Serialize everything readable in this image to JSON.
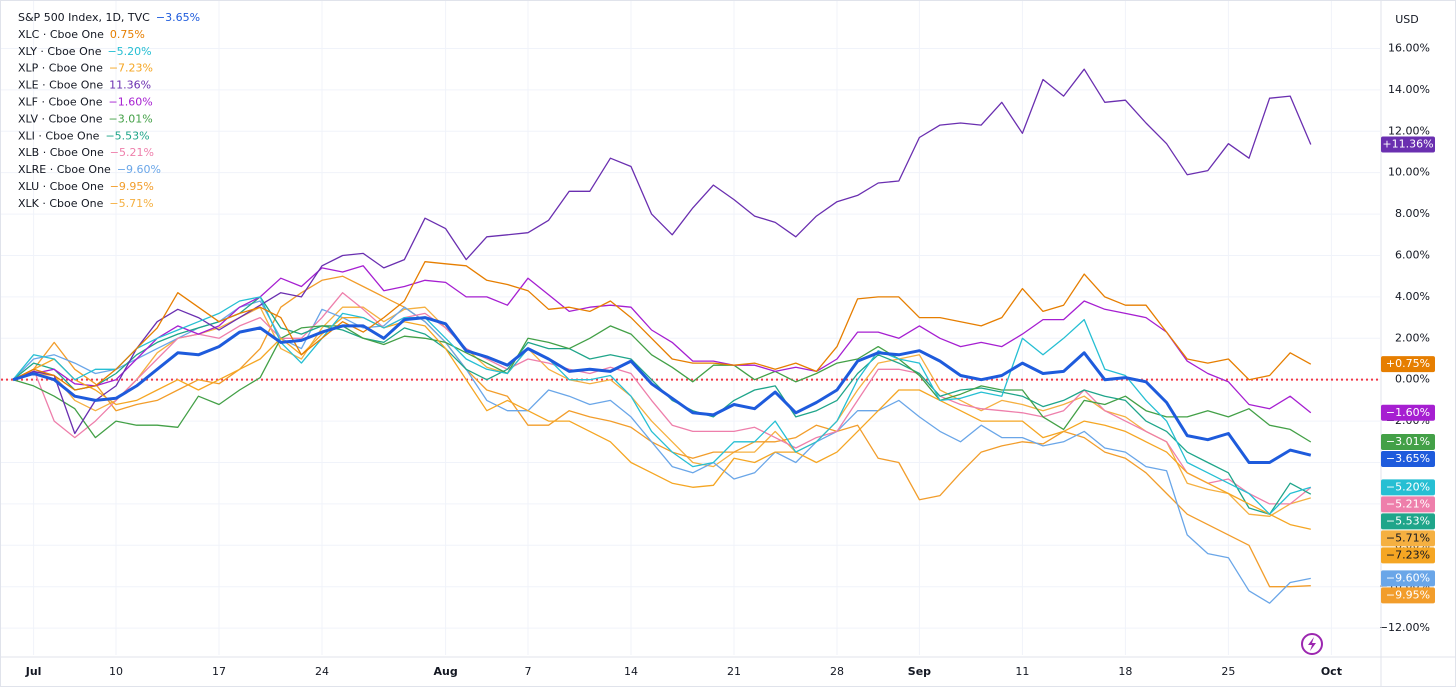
{
  "chart_data": {
    "type": "line",
    "currency": "USD",
    "categories": [
      null,
      "Jul",
      null,
      null,
      null,
      "10",
      null,
      null,
      null,
      null,
      "17",
      null,
      null,
      null,
      null,
      "24",
      null,
      null,
      null,
      null,
      null,
      "Aug",
      null,
      null,
      null,
      "7",
      null,
      null,
      null,
      null,
      "14",
      null,
      null,
      null,
      null,
      "21",
      null,
      null,
      null,
      null,
      "28",
      null,
      null,
      null,
      "Sep",
      null,
      null,
      null,
      null,
      "11",
      null,
      null,
      null,
      null,
      "18",
      null,
      null,
      null,
      null,
      "25",
      null,
      null,
      null,
      null,
      "Oct"
    ],
    "ylim": [
      -13.3,
      18.1
    ],
    "yticks": [
      {
        "value": -12,
        "label": "−12.00%"
      },
      {
        "value": -10,
        "label": "−10.00%"
      },
      {
        "value": -8,
        "label": "−8.00%"
      },
      {
        "value": -6,
        "label": "−6.00%"
      },
      {
        "value": -4,
        "label": "−4.00%"
      },
      {
        "value": -2,
        "label": "−2.00%"
      },
      {
        "value": 0,
        "label": "0.00%"
      },
      {
        "value": 2,
        "label": "2.00%"
      },
      {
        "value": 4,
        "label": "4.00%"
      },
      {
        "value": 6,
        "label": "6.00%"
      },
      {
        "value": 8,
        "label": "8.00%"
      },
      {
        "value": 10,
        "label": "10.00%"
      },
      {
        "value": 12,
        "label": "12.00%"
      },
      {
        "value": 14,
        "label": "14.00%"
      },
      {
        "value": 16,
        "label": "16.00%"
      }
    ],
    "grid": true,
    "series": [
      {
        "name": "S&P 500 Index, 1D, TVC",
        "legend_value": "−3.65%",
        "badge": "−3.65%",
        "color": "#1e5bdc",
        "width": 3,
        "values": [
          0,
          0.3,
          0,
          -0.8,
          -1.0,
          -0.9,
          -0.3,
          0.5,
          1.3,
          1.2,
          1.6,
          2.3,
          2.5,
          1.8,
          1.9,
          2.3,
          2.6,
          2.6,
          2.0,
          2.9,
          3.0,
          2.7,
          1.4,
          1.1,
          0.7,
          1.5,
          1.0,
          0.4,
          0.5,
          0.4,
          0.9,
          -0.2,
          -0.9,
          -1.6,
          -1.7,
          -1.2,
          -1.4,
          -0.6,
          -1.6,
          -1.1,
          -0.5,
          0.9,
          1.3,
          1.2,
          1.4,
          0.9,
          0.2,
          0.0,
          0.2,
          0.8,
          0.3,
          0.4,
          1.3,
          0.0,
          0.1,
          -0.1,
          -1.1,
          -2.7,
          -2.9,
          -2.6,
          -4.0,
          -4.0,
          -3.4,
          -3.65,
          null
        ]
      },
      {
        "name": "XLC · Cboe One",
        "legend_value": "0.75%",
        "badge": "+0.75%",
        "color": "#e67e00",
        "width": 1.3,
        "values": [
          0,
          0.5,
          0.2,
          -0.5,
          -0.3,
          0.5,
          1.5,
          2.5,
          4.2,
          3.5,
          2.8,
          3.2,
          3.5,
          3.0,
          1.2,
          2.0,
          2.8,
          2.3,
          3.0,
          3.8,
          5.7,
          5.6,
          5.5,
          4.8,
          4.6,
          4.3,
          3.4,
          3.5,
          3.3,
          3.8,
          3.0,
          2.0,
          1.0,
          0.8,
          0.8,
          0.7,
          0.8,
          0.5,
          0.8,
          0.4,
          1.6,
          3.9,
          4.0,
          4.0,
          3.0,
          3.0,
          2.8,
          2.6,
          3.0,
          4.4,
          3.3,
          3.6,
          5.1,
          4.0,
          3.6,
          3.6,
          2.3,
          1.0,
          0.8,
          1.0,
          0.0,
          0.2,
          1.3,
          0.75,
          null
        ]
      },
      {
        "name": "XLY · Cboe One",
        "legend_value": "−5.20%",
        "badge": "−5.20%",
        "color": "#26bfd3",
        "width": 1.3,
        "values": [
          0,
          1.2,
          1.0,
          0.0,
          0.5,
          0.5,
          1.5,
          2.0,
          2.4,
          2.8,
          3.2,
          3.8,
          4.0,
          1.8,
          0.8,
          2.0,
          3.2,
          3.0,
          2.5,
          3.0,
          3.0,
          2.0,
          1.0,
          0.5,
          0.3,
          1.5,
          1.0,
          0.0,
          0.0,
          0.2,
          -0.8,
          -2.5,
          -3.5,
          -4.2,
          -4.0,
          -3.0,
          -3.0,
          -2.0,
          -3.5,
          -3.0,
          -2.0,
          0.0,
          1.4,
          1.0,
          0.8,
          -1.0,
          -0.9,
          -0.6,
          -0.8,
          2.0,
          1.2,
          2.0,
          2.9,
          0.5,
          0.2,
          -1.0,
          -2.0,
          -4.0,
          -4.5,
          -5.0,
          -5.5,
          -6.5,
          -5.5,
          -5.2,
          null
        ]
      },
      {
        "name": "XLP · Cboe One",
        "legend_value": "−7.23%",
        "badge": "−7.23%",
        "color": "#f5a623",
        "width": 1.3,
        "values": [
          0,
          0.5,
          1.0,
          0.0,
          -0.5,
          -1.2,
          -1.0,
          -0.5,
          0.0,
          -0.5,
          0.0,
          0.5,
          1.0,
          2.0,
          1.2,
          2.2,
          3.0,
          3.0,
          2.5,
          2.8,
          2.6,
          1.5,
          0.0,
          -1.5,
          -1.0,
          -1.5,
          -2.0,
          -2.0,
          -2.5,
          -3.0,
          -4.0,
          -4.5,
          -5.0,
          -5.2,
          -5.1,
          -3.8,
          -4.0,
          -3.5,
          -3.5,
          -4.0,
          -3.5,
          -2.5,
          -1.5,
          -0.5,
          -0.5,
          -1.0,
          -1.5,
          -2.0,
          -2.0,
          -2.0,
          -2.8,
          -2.5,
          -2.0,
          -2.2,
          -2.5,
          -3.0,
          -3.5,
          -4.5,
          -5.0,
          -5.5,
          -6.0,
          -6.5,
          -7.0,
          -7.23,
          null
        ]
      },
      {
        "name": "XLE · Cboe One",
        "legend_value": "11.36%",
        "badge": "+11.36%",
        "color": "#6a2fb0",
        "width": 1.3,
        "values": [
          0,
          0.4,
          0.2,
          -2.6,
          -1.0,
          -0.3,
          1.5,
          2.8,
          3.4,
          3.0,
          2.4,
          3.0,
          3.6,
          4.2,
          4.0,
          5.5,
          6.0,
          6.1,
          5.4,
          5.8,
          7.8,
          7.3,
          5.8,
          6.9,
          7.0,
          7.1,
          7.7,
          9.1,
          9.1,
          10.7,
          10.3,
          8.0,
          7.0,
          8.3,
          9.4,
          8.7,
          7.9,
          7.6,
          6.9,
          7.9,
          8.6,
          8.9,
          9.5,
          9.6,
          11.7,
          12.3,
          12.4,
          12.3,
          13.4,
          11.9,
          14.5,
          13.7,
          15.0,
          13.4,
          13.5,
          12.4,
          11.4,
          9.9,
          10.1,
          11.4,
          10.7,
          13.6,
          13.7,
          11.36,
          null
        ]
      },
      {
        "name": "XLF · Cboe One",
        "legend_value": "−1.60%",
        "badge": "−1.60%",
        "color": "#a61fd1",
        "width": 1.3,
        "values": [
          0,
          0.3,
          0.5,
          -0.2,
          -0.3,
          0.0,
          1.0,
          2.0,
          2.6,
          2.2,
          2.6,
          3.5,
          4.0,
          4.9,
          4.5,
          5.4,
          5.2,
          5.5,
          4.3,
          4.5,
          4.8,
          4.7,
          4.0,
          4.0,
          3.6,
          4.9,
          4.1,
          3.3,
          3.5,
          3.6,
          3.5,
          2.4,
          1.8,
          0.9,
          0.9,
          0.7,
          0.7,
          0.4,
          0.6,
          0.4,
          1.0,
          2.3,
          2.3,
          2.0,
          2.6,
          2.0,
          1.6,
          1.8,
          1.6,
          2.2,
          2.9,
          2.9,
          3.8,
          3.4,
          3.2,
          3.0,
          2.3,
          0.9,
          0.3,
          -0.1,
          -1.2,
          -1.4,
          -0.8,
          -1.6,
          null
        ]
      },
      {
        "name": "XLV · Cboe One",
        "legend_value": "−3.01%",
        "badge": "−3.01%",
        "color": "#43a047",
        "width": 1.3,
        "values": [
          0,
          -0.3,
          -0.8,
          -1.4,
          -2.8,
          -2.0,
          -2.2,
          -2.2,
          -2.3,
          -0.8,
          -1.2,
          -0.5,
          0.1,
          2.0,
          2.5,
          2.6,
          2.6,
          2.0,
          1.7,
          2.1,
          2.0,
          1.8,
          1.3,
          0.8,
          0.3,
          2.0,
          1.8,
          1.5,
          2.0,
          2.6,
          2.2,
          1.2,
          0.6,
          -0.1,
          0.7,
          0.7,
          0.0,
          0.4,
          -0.1,
          0.3,
          0.8,
          1.0,
          1.6,
          1.0,
          0.2,
          -1.0,
          -0.7,
          -0.3,
          -0.5,
          -0.5,
          -1.8,
          -2.4,
          -1.0,
          -1.2,
          -0.8,
          -1.5,
          -1.8,
          -1.8,
          -1.5,
          -1.8,
          -1.4,
          -2.2,
          -2.4,
          -3.01,
          null
        ]
      },
      {
        "name": "XLI · Cboe One",
        "legend_value": "−5.53%",
        "badge": "−5.53%",
        "color": "#1fa58a",
        "width": 1.3,
        "values": [
          0,
          0.8,
          0.5,
          -0.5,
          -0.3,
          0.3,
          1.2,
          1.8,
          2.2,
          2.5,
          2.8,
          3.2,
          4.0,
          2.5,
          2.2,
          2.6,
          2.4,
          2.0,
          1.8,
          2.5,
          2.2,
          1.5,
          0.5,
          0.0,
          0.5,
          1.8,
          1.5,
          1.5,
          1.0,
          1.2,
          1.0,
          0.0,
          -1.0,
          -1.5,
          -1.8,
          -1.0,
          -0.5,
          -0.3,
          -1.8,
          -1.5,
          -1.0,
          0.3,
          1.2,
          0.8,
          0.3,
          -0.8,
          -0.5,
          -0.4,
          -0.6,
          -0.8,
          -1.3,
          -1.0,
          -0.5,
          -0.8,
          -1.0,
          -2.0,
          -2.5,
          -3.5,
          -4.0,
          -4.5,
          -6.2,
          -6.5,
          -5.0,
          -5.53,
          null
        ]
      },
      {
        "name": "XLB · Cboe One",
        "legend_value": "−5.21%",
        "badge": "−5.21%",
        "color": "#ee7fab",
        "width": 1.3,
        "values": [
          0,
          0.5,
          -2.0,
          -2.8,
          -2.0,
          -1.0,
          0.0,
          1.0,
          2.0,
          2.2,
          2.0,
          2.6,
          3.0,
          2.0,
          2.0,
          3.0,
          4.2,
          3.4,
          2.5,
          3.0,
          3.2,
          2.5,
          1.5,
          1.0,
          0.5,
          1.0,
          0.8,
          0.5,
          0.3,
          0.6,
          0.3,
          -1.0,
          -2.2,
          -2.5,
          -2.5,
          -2.5,
          -2.3,
          -2.8,
          -3.3,
          -2.8,
          -2.5,
          -1.0,
          0.5,
          0.5,
          0.3,
          -0.8,
          -1.2,
          -1.4,
          -1.5,
          -1.6,
          -1.8,
          -1.5,
          -0.5,
          -1.5,
          -2.0,
          -2.5,
          -3.0,
          -4.5,
          -5.0,
          -4.8,
          -5.5,
          -6.0,
          -6.0,
          -5.21,
          null
        ]
      },
      {
        "name": "XLRE · Cboe One",
        "legend_value": "−9.60%",
        "badge": "−9.60%",
        "color": "#6aa6e8",
        "width": 1.3,
        "values": [
          0,
          1.0,
          1.2,
          0.8,
          0.3,
          0.5,
          1.0,
          1.5,
          2.0,
          2.5,
          2.8,
          3.5,
          3.8,
          2.0,
          1.5,
          3.4,
          3.0,
          2.5,
          2.6,
          3.5,
          2.8,
          1.8,
          0.5,
          -1.0,
          -1.5,
          -1.5,
          -0.5,
          -0.8,
          -1.2,
          -1.0,
          -1.8,
          -3.0,
          -4.2,
          -4.5,
          -4.0,
          -4.8,
          -4.5,
          -3.5,
          -4.0,
          -3.0,
          -2.5,
          -1.5,
          -1.5,
          -1.0,
          -1.8,
          -2.5,
          -3.0,
          -2.2,
          -2.8,
          -2.8,
          -3.2,
          -3.0,
          -2.5,
          -3.3,
          -3.5,
          -4.2,
          -4.4,
          -7.5,
          -8.4,
          -8.6,
          -10.2,
          -10.8,
          -9.8,
          -9.6,
          null
        ]
      },
      {
        "name": "XLU · Cboe One",
        "legend_value": "−9.95%",
        "badge": "−9.95%",
        "color": "#f29d2b",
        "width": 1.3,
        "values": [
          0,
          0.5,
          1.8,
          0.5,
          -0.2,
          -1.5,
          -1.2,
          -1.0,
          -0.5,
          0.0,
          -0.2,
          0.5,
          1.5,
          3.5,
          4.2,
          4.8,
          5.0,
          4.5,
          4.0,
          3.5,
          2.8,
          1.8,
          0.5,
          -0.5,
          -0.8,
          -2.2,
          -2.2,
          -1.5,
          -1.8,
          -2.0,
          -2.3,
          -3.0,
          -3.5,
          -3.8,
          -3.5,
          -3.5,
          -3.0,
          -3.0,
          -2.8,
          -2.2,
          -2.5,
          -2.2,
          -3.8,
          -4.0,
          -5.8,
          -5.6,
          -4.5,
          -3.5,
          -3.2,
          -3.0,
          -3.1,
          -2.5,
          -2.8,
          -3.5,
          -3.8,
          -4.5,
          -5.5,
          -6.5,
          -7.0,
          -7.5,
          -8.0,
          -10.0,
          -10.0,
          -9.95,
          null
        ]
      },
      {
        "name": "XLK · Cboe One",
        "legend_value": "−5.71%",
        "badge": "−5.71%",
        "color": "#f5b041",
        "width": 1.3,
        "values": [
          0,
          0.3,
          0.2,
          -1.0,
          -1.5,
          -1.0,
          0.0,
          1.3,
          2.0,
          2.2,
          2.5,
          3.0,
          3.5,
          1.5,
          1.0,
          2.5,
          3.5,
          3.5,
          2.8,
          3.4,
          3.5,
          2.5,
          1.5,
          0.6,
          0.3,
          1.5,
          0.5,
          0.0,
          -0.2,
          0.0,
          -0.8,
          -2.0,
          -3.0,
          -4.0,
          -4.2,
          -3.5,
          -3.5,
          -2.5,
          -3.5,
          -3.0,
          -2.0,
          -0.5,
          0.8,
          1.0,
          1.2,
          -0.5,
          -1.0,
          -1.5,
          -1.0,
          -1.2,
          -1.5,
          -1.2,
          -0.8,
          -1.5,
          -1.8,
          -2.5,
          -3.0,
          -5.0,
          -5.3,
          -5.5,
          -6.5,
          -6.6,
          -6.0,
          -5.71,
          null
        ]
      }
    ]
  }
}
